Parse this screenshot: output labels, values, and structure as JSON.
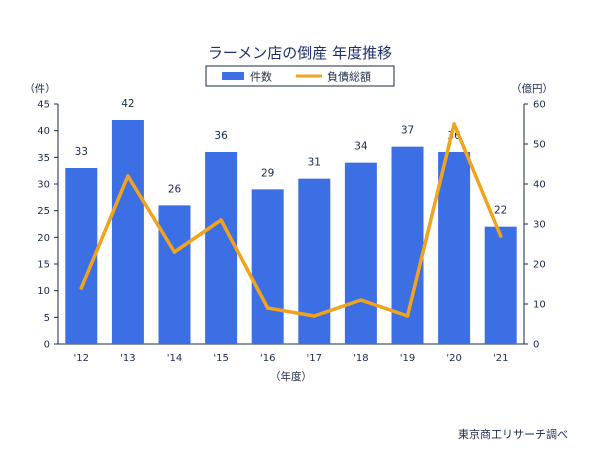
{
  "chart_data": {
    "type": "bar+line",
    "title": "ラーメン店の倒産 年度推移",
    "categories": [
      "'12",
      "'13",
      "'14",
      "'15",
      "'16",
      "'17",
      "'18",
      "'19",
      "'20",
      "'21"
    ],
    "series": [
      {
        "name": "件数",
        "type": "bar",
        "axis": "left",
        "values": [
          33,
          42,
          26,
          36,
          29,
          31,
          34,
          37,
          36,
          22
        ],
        "color": "#3d6fe4"
      },
      {
        "name": "負債総額",
        "type": "line",
        "axis": "right",
        "values": [
          14,
          42,
          23,
          31,
          9,
          7,
          11,
          7,
          55,
          27
        ],
        "color": "#f2a31c"
      }
    ],
    "y_left": {
      "label": "（件）",
      "min": 0,
      "max": 45,
      "ticks": [
        0,
        5,
        10,
        15,
        20,
        25,
        30,
        35,
        40,
        45
      ]
    },
    "y_right": {
      "label": "（億円）",
      "min": 0,
      "max": 60,
      "ticks": [
        0,
        10,
        20,
        30,
        40,
        50,
        60
      ]
    },
    "xlabel": "（年度）",
    "legend_position": "top-center",
    "grid": false
  },
  "source": "東京商工リサーチ調べ"
}
